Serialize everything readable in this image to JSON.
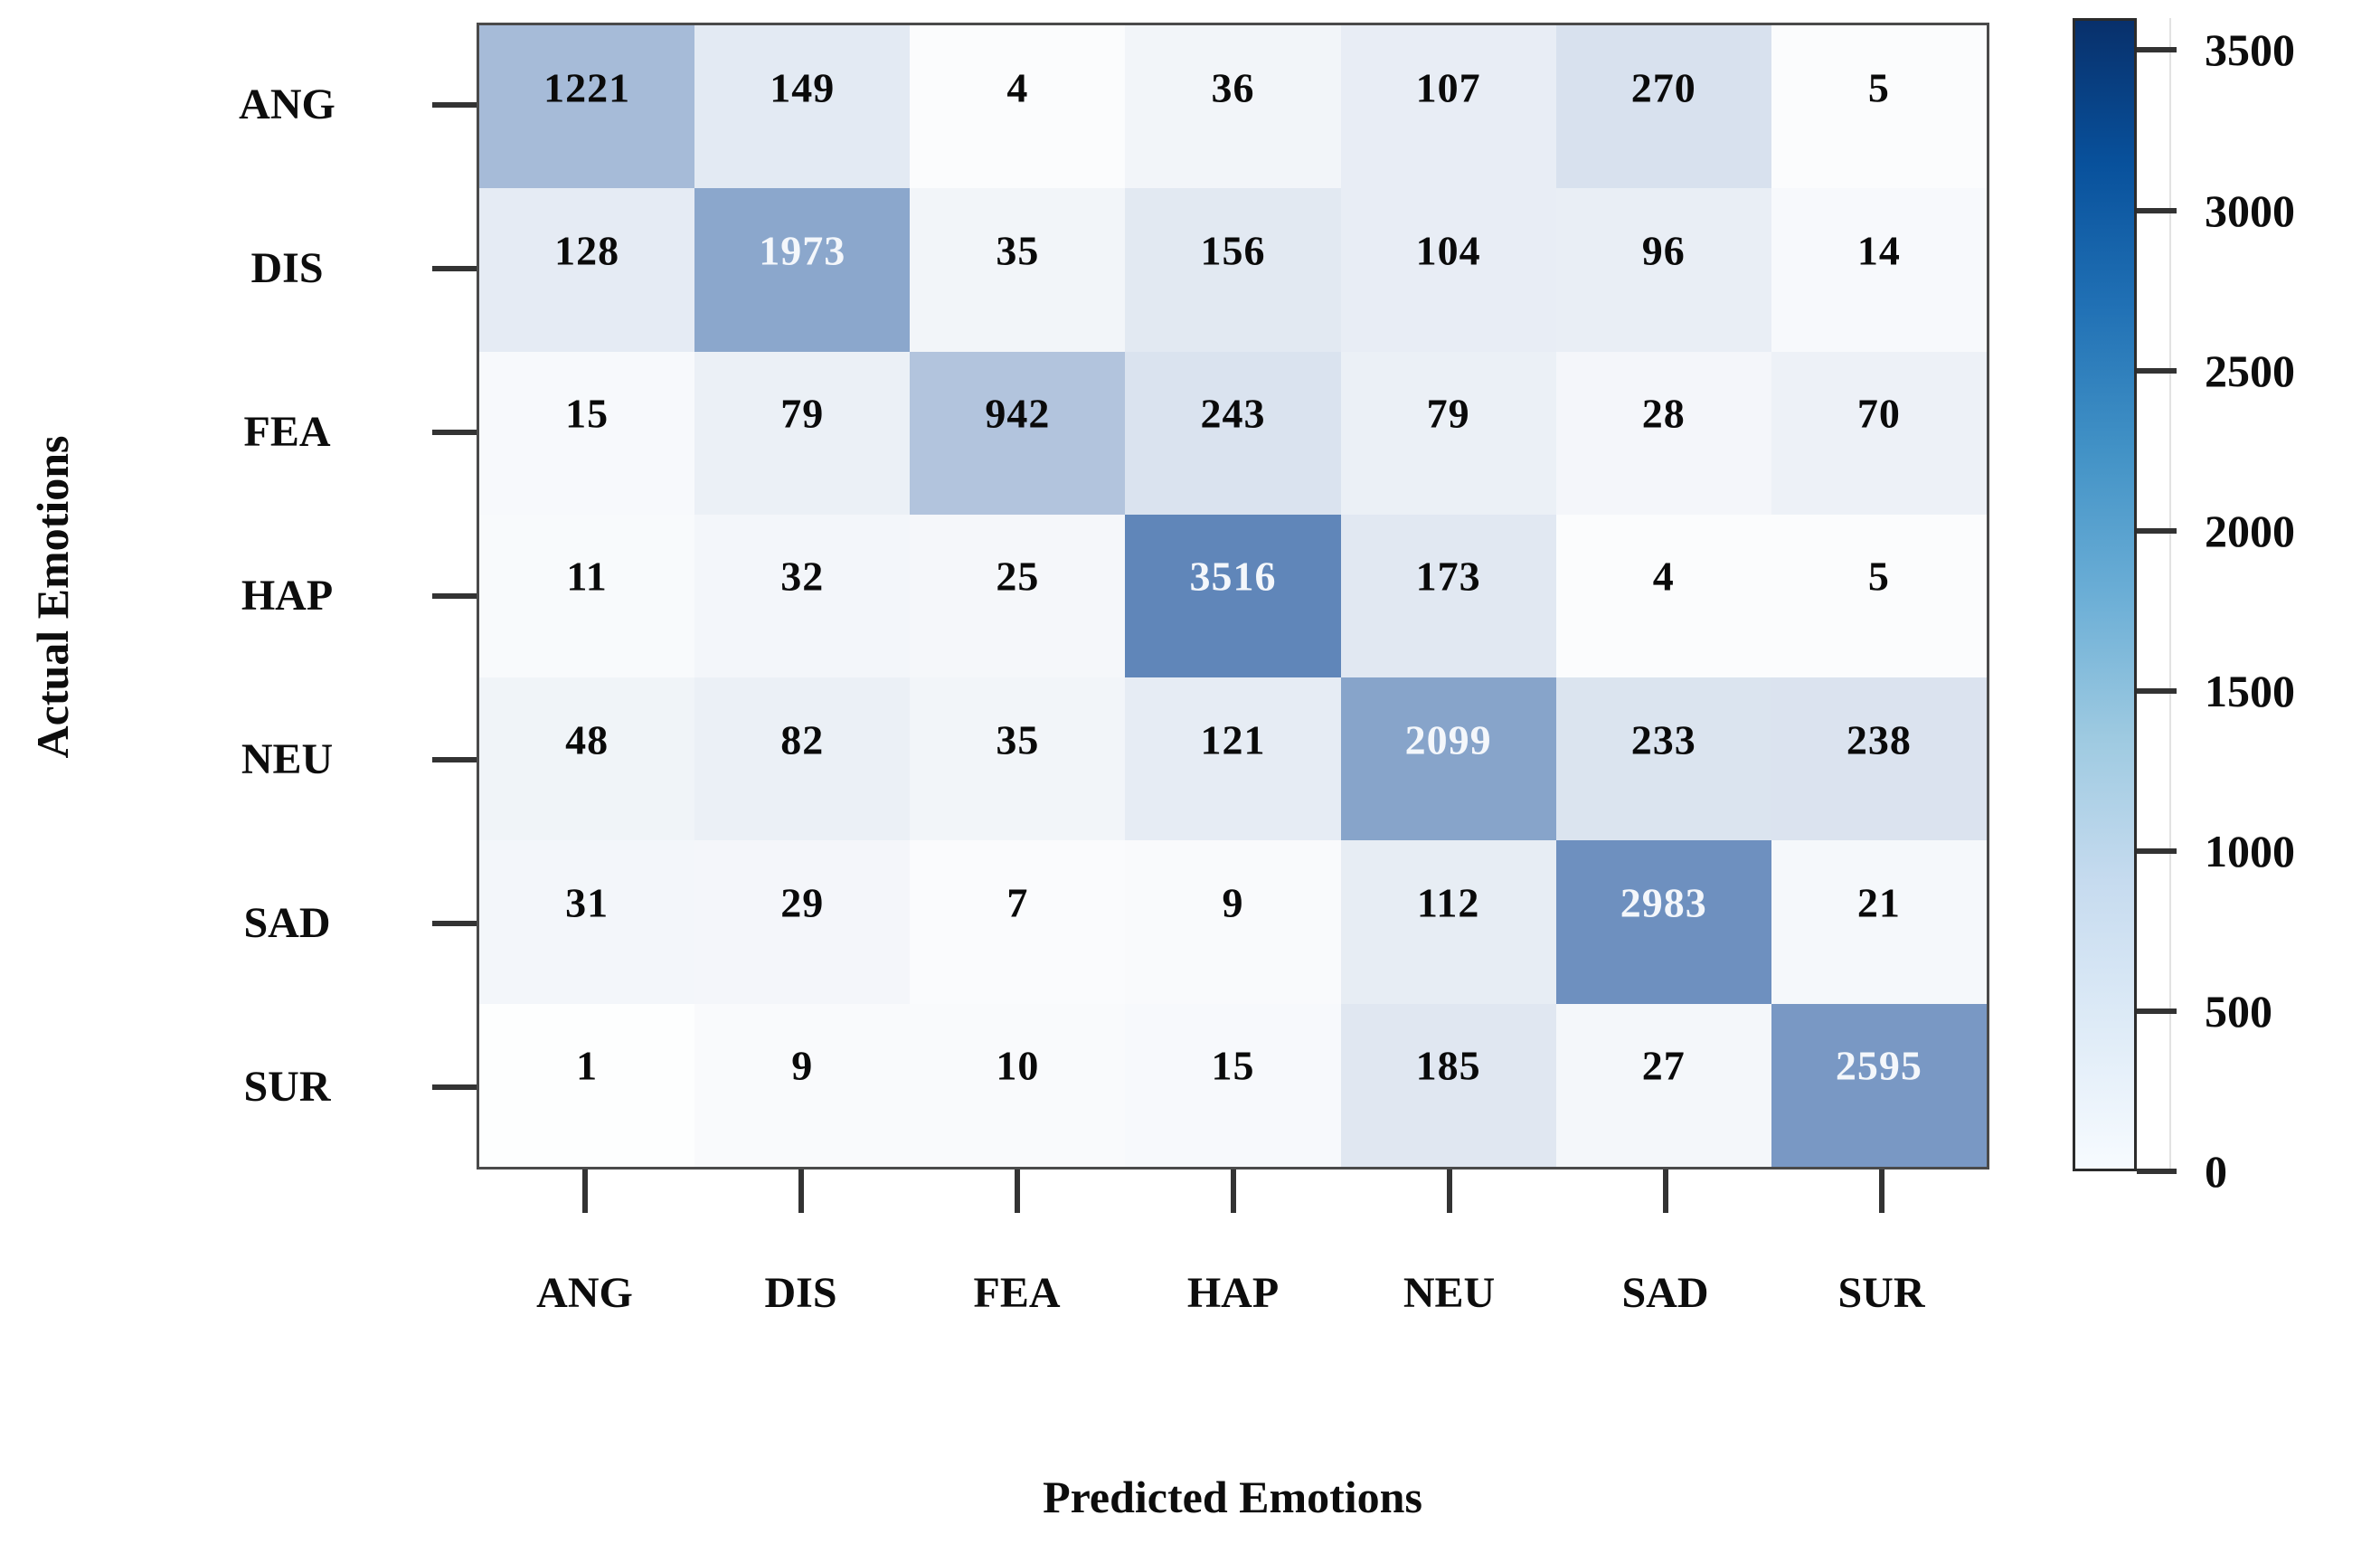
{
  "chart_data": {
    "type": "heatmap",
    "title": "",
    "xlabel": "Predicted Emotions",
    "ylabel": "Actual Emotions",
    "categories_x": [
      "ANG",
      "DIS",
      "FEA",
      "HAP",
      "NEU",
      "SAD",
      "SUR"
    ],
    "categories_y": [
      "ANG",
      "DIS",
      "FEA",
      "HAP",
      "NEU",
      "SAD",
      "SUR"
    ],
    "matrix": [
      [
        1221,
        149,
        4,
        36,
        107,
        270,
        5
      ],
      [
        128,
        1973,
        35,
        156,
        104,
        96,
        14
      ],
      [
        15,
        79,
        942,
        243,
        79,
        28,
        70
      ],
      [
        11,
        32,
        25,
        3516,
        173,
        4,
        5
      ],
      [
        48,
        82,
        35,
        121,
        2099,
        233,
        238
      ],
      [
        31,
        29,
        7,
        9,
        112,
        2983,
        21
      ],
      [
        1,
        9,
        10,
        15,
        185,
        27,
        2595
      ]
    ],
    "colorbar": {
      "ticks": [
        3500,
        3000,
        2500,
        2000,
        1500,
        1000,
        500,
        0
      ],
      "vmin": 0,
      "vmax": 3600,
      "colormap": "Blues",
      "gradient_stops": [
        "#08306b",
        "#08519c",
        "#2171b5",
        "#4292c6",
        "#6baed6",
        "#9ecae1",
        "#c6dbef",
        "#deebf7",
        "#f7fbff"
      ]
    },
    "colors": {
      "cell_max": "#5e84b8",
      "cell_min": "#ffffff",
      "border": "#4a4a4a",
      "tick": "#333333",
      "text_dark": "#0a0a0a",
      "text_light": "#f4f7fb"
    },
    "layout": {
      "grid": "off",
      "legend_position": "right-colorbar"
    }
  }
}
